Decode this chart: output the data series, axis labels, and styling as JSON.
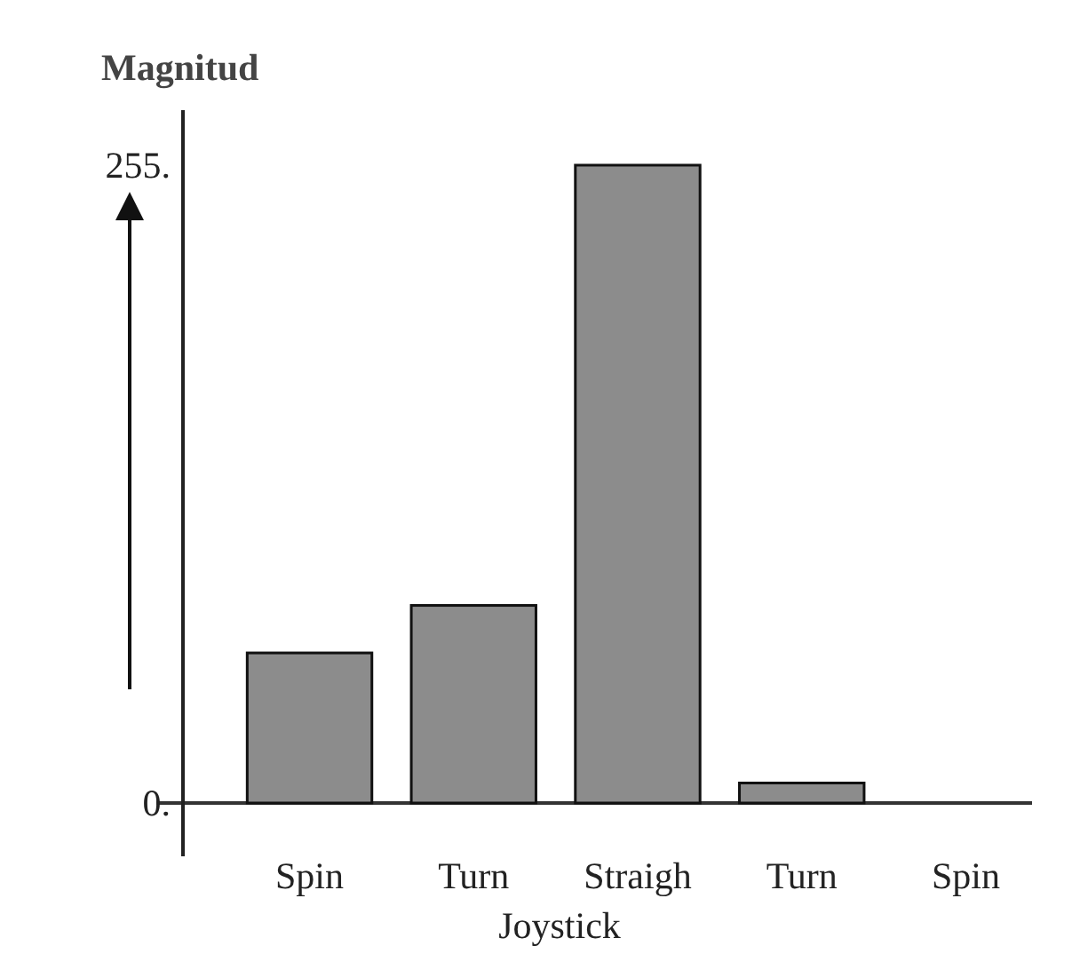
{
  "chart_data": {
    "type": "bar",
    "xlabel": "Joystick",
    "ylabel": "Magnitud",
    "categories": [
      "Spin",
      "Turn",
      "Straigh",
      "Turn",
      "Spin"
    ],
    "values": [
      60,
      79,
      255,
      8,
      0
    ],
    "color": "#8c8c8c",
    "ylim": [
      0,
      277
    ],
    "yticks": [
      {
        "value": 0,
        "label": "0."
      },
      {
        "value": 255,
        "label": "255."
      }
    ],
    "grid": false,
    "legend": false
  }
}
